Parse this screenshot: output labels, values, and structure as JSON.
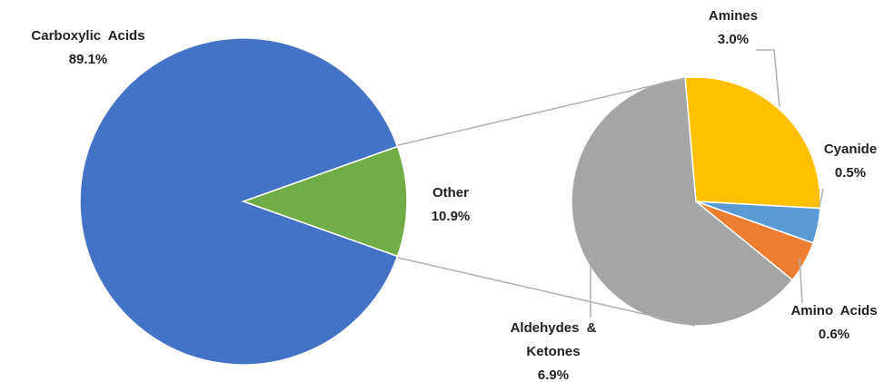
{
  "chart_data": [
    {
      "type": "pie",
      "categories": [
        "Carboxylic Acids",
        "Other"
      ],
      "values": [
        89.1,
        10.9
      ],
      "value_labels": [
        "89.1%",
        "10.9%"
      ],
      "colors": [
        "#4472c4",
        "#70ad47"
      ]
    },
    {
      "type": "pie",
      "categories": [
        "Amines",
        "Cyanide",
        "Amino Acids",
        "Aldehydes & Ketones"
      ],
      "values": [
        3.0,
        0.5,
        0.6,
        6.9
      ],
      "value_labels": [
        "3.0%",
        "0.5%",
        "0.6%",
        "6.9%"
      ],
      "colors": [
        "#ffc000",
        "#5b9bd5",
        "#ed7d31",
        "#a5a5a5"
      ]
    }
  ]
}
